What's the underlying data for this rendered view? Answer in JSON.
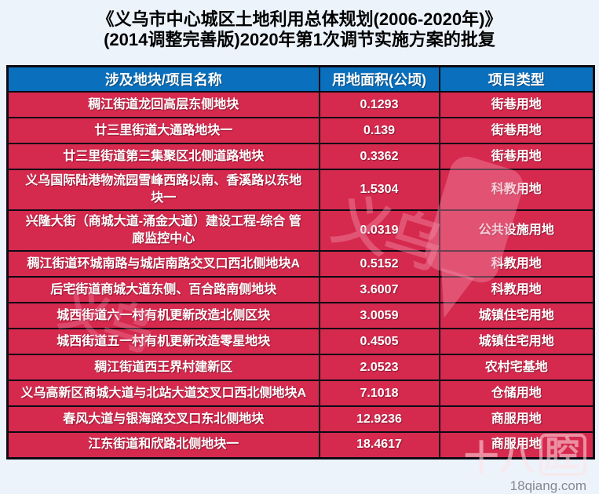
{
  "title": {
    "line1": "《义乌市中心城区土地利用总体规划(2006-2020年)》",
    "line2": "(2014调整完善版)2020年第1次调节实施方案的批复"
  },
  "table": {
    "columns": [
      "涉及地块/项目名称",
      "用地面积(公顷)",
      "项目类型"
    ],
    "rows": [
      [
        "稠江街道龙回高层东侧地块",
        "0.1293",
        "街巷用地"
      ],
      [
        "廿三里街道大通路地块一",
        "0.139",
        "街巷用地"
      ],
      [
        "廿三里街道第三集聚区北侧道路地块",
        "0.3362",
        "街巷用地"
      ],
      [
        "义乌国际陆港物流园雪峰西路以南、香溪路以东地块一",
        "1.5304",
        "科教用地"
      ],
      [
        "兴隆大街（商城大道-涌金大道）建设工程-综合 管廊监控中心",
        "0.0319",
        "公共设施用地"
      ],
      [
        "稠江街道环城南路与城店南路交叉口西北侧地块A",
        "0.5152",
        "科教用地"
      ],
      [
        "后宅街道商城大道东侧、百合路南侧地块",
        "3.6007",
        "科教用地"
      ],
      [
        "城西街道六一村有机更新改造北侧区块",
        "3.0059",
        "城镇住宅用地"
      ],
      [
        "城西街道五一村有机更新改造零星地块",
        "0.4505",
        "城镇住宅用地"
      ],
      [
        "稠江街道西王界村建新区",
        "2.0523",
        "农村宅基地"
      ],
      [
        "义乌高新区商城大道与北站大道交叉口西北侧地块A",
        "7.1018",
        "仓储用地"
      ],
      [
        "春风大道与银海路交叉口东北侧地块",
        "12.9236",
        "商服用地"
      ],
      [
        "江东街道和欣路北侧地块一",
        "18.4617",
        "商服用地"
      ]
    ]
  },
  "watermark": {
    "glyphs": "义乌",
    "site_name_part1": "十八",
    "site_name_part2": "腔",
    "site_url": "18qiang.com"
  },
  "colors": {
    "page_bg": "#edf3fb",
    "header_bg": "#0a70bd",
    "row_bg": "#d5294e",
    "border": "#0b0b15",
    "text": "#ffffff",
    "title": "#000000"
  }
}
